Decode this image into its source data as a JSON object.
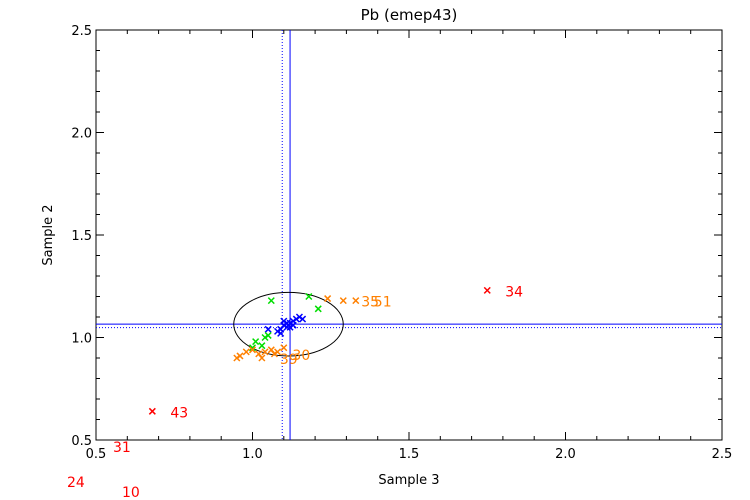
{
  "chart_data": {
    "type": "scatter",
    "title": "Pb (emep43)",
    "xlabel": "Sample 3",
    "ylabel": "Sample 2",
    "xlim": [
      0.5,
      2.5
    ],
    "ylim": [
      0.5,
      2.5
    ],
    "xticks": [
      "0.5",
      "1.0",
      "1.5",
      "2.0",
      "2.5"
    ],
    "yticks": [
      "0.5",
      "1.0",
      "1.5",
      "2.0",
      "2.5"
    ],
    "grid": false,
    "reference_lines": {
      "vertical_solid": 1.12,
      "vertical_dotted": 1.095,
      "horizontal_solid": 1.065,
      "horizontal_dotted": 1.048
    },
    "ellipse": {
      "cx": 1.115,
      "cy": 1.065,
      "rx": 0.175,
      "ry": 0.155
    },
    "series": [
      {
        "color": "#0000ff",
        "marker": "x",
        "points": [
          {
            "x": 1.1,
            "y": 1.06
          },
          {
            "x": 1.11,
            "y": 1.07
          },
          {
            "x": 1.12,
            "y": 1.05
          },
          {
            "x": 1.13,
            "y": 1.08
          },
          {
            "x": 1.14,
            "y": 1.09
          },
          {
            "x": 1.15,
            "y": 1.1
          },
          {
            "x": 1.16,
            "y": 1.09
          },
          {
            "x": 1.09,
            "y": 1.04
          },
          {
            "x": 1.08,
            "y": 1.03
          },
          {
            "x": 1.05,
            "y": 1.04
          },
          {
            "x": 1.11,
            "y": 1.05
          },
          {
            "x": 1.12,
            "y": 1.07
          },
          {
            "x": 1.1,
            "y": 1.08
          },
          {
            "x": 1.13,
            "y": 1.06
          },
          {
            "x": 1.09,
            "y": 1.02
          }
        ]
      },
      {
        "color": "#00dd00",
        "marker": "x",
        "points": [
          {
            "x": 1.06,
            "y": 1.18
          },
          {
            "x": 1.18,
            "y": 1.2
          },
          {
            "x": 1.21,
            "y": 1.14
          },
          {
            "x": 1.04,
            "y": 1.0
          },
          {
            "x": 1.05,
            "y": 1.01
          },
          {
            "x": 1.01,
            "y": 0.98
          },
          {
            "x": 1.03,
            "y": 0.96
          },
          {
            "x": 1.0,
            "y": 0.95
          }
        ]
      },
      {
        "color": "#ff8000",
        "marker": "x",
        "points": [
          {
            "x": 1.24,
            "y": 1.19,
            "label": ""
          },
          {
            "x": 1.29,
            "y": 1.18,
            "label": "35"
          },
          {
            "x": 1.33,
            "y": 1.18,
            "label": "51"
          },
          {
            "x": 0.96,
            "y": 0.91
          },
          {
            "x": 0.98,
            "y": 0.93
          },
          {
            "x": 1.0,
            "y": 0.94
          },
          {
            "x": 1.02,
            "y": 0.92
          },
          {
            "x": 1.04,
            "y": 0.93
          },
          {
            "x": 1.06,
            "y": 0.94
          },
          {
            "x": 1.08,
            "y": 0.93
          },
          {
            "x": 1.1,
            "y": 0.95
          },
          {
            "x": 1.07,
            "y": 0.92,
            "label": "30"
          },
          {
            "x": 1.03,
            "y": 0.9,
            "label": "39"
          },
          {
            "x": 0.95,
            "y": 0.9
          }
        ]
      },
      {
        "color": "#ff0000",
        "marker": "x",
        "points": [
          {
            "x": 1.75,
            "y": 1.23,
            "label": "34"
          },
          {
            "x": 0.68,
            "y": 0.64,
            "label": "43"
          }
        ]
      }
    ],
    "offscale_labels": [
      "31",
      "24",
      "10"
    ]
  }
}
